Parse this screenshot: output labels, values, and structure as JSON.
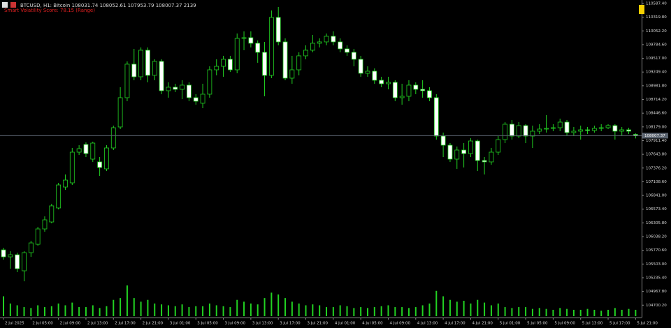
{
  "chart_data": {
    "type": "candlestick",
    "title": "BTCUSD, H1:  Bitcoin  108031.74 108052.61 107953.79 108007.37  2139",
    "subtitle": "Smart Volatility Score: 78.15 (Range)",
    "categories": [
      "2 Jul 2025",
      null,
      null,
      null,
      "2 Jul 05:00",
      null,
      null,
      null,
      "2 Jul 09:00",
      null,
      null,
      null,
      "2 Jul 13:00",
      null,
      null,
      null,
      "2 Jul 17:00",
      null,
      null,
      null,
      "2 Jul 21:00",
      null,
      null,
      null,
      "3 Jul 01:00",
      null,
      null,
      null,
      "3 Jul 05:00",
      null,
      null,
      null,
      "3 Jul 09:00",
      null,
      null,
      null,
      "3 Jul 13:00",
      null,
      null,
      null,
      "3 Jul 17:00",
      null,
      null,
      null,
      "3 Jul 21:00",
      null,
      null,
      null,
      "4 Jul 01:00",
      null,
      null,
      null,
      "4 Jul 05:00",
      null,
      null,
      null,
      "4 Jul 09:00",
      null,
      null,
      null,
      "4 Jul 13:00",
      null,
      null,
      null,
      "4 Jul 17:00",
      null,
      null,
      null,
      "4 Jul 21:00",
      null,
      null,
      null,
      "5 Jul 01:00",
      null,
      null,
      null,
      "5 Jul 05:00",
      null,
      null,
      null,
      "5 Jul 09:00",
      null,
      null,
      null,
      "5 Jul 13:00",
      null,
      null,
      null,
      "5 Jul 17:00",
      null,
      null,
      null,
      "5 Jul 21:00"
    ],
    "open": [
      105779,
      105643,
      105684,
      105371,
      105725,
      105888,
      106188,
      106324,
      106597,
      107005,
      107087,
      107686,
      107836,
      107550,
      107496,
      107360,
      107768,
      108177,
      108749,
      109403,
      109157,
      109675,
      109185,
      109457,
      108885,
      108953,
      108912,
      108994,
      108749,
      108640,
      108817,
      109293,
      109361,
      109498,
      109293,
      109906,
      109920,
      109811,
      109634,
      109184,
      110315,
      109838,
      109130,
      109293,
      109566,
      109675,
      109811,
      109838,
      109947,
      109838,
      109702,
      109634,
      109498,
      109225,
      109266,
      109089,
      109021,
      109048,
      108749,
      108776,
      108994,
      108912,
      108885,
      108749,
      108000,
      107822,
      107550,
      107727,
      107659,
      107904,
      107523,
      107496,
      107686,
      107931,
      108231,
      108000,
      108204,
      108000,
      108095,
      108136,
      108150,
      108163,
      108272,
      108068,
      108095,
      108122,
      108109,
      108150,
      108163,
      108204,
      108095,
      108122,
      108031.74
    ],
    "high": [
      105820,
      105752,
      105725,
      105752,
      105956,
      106229,
      106433,
      106679,
      107087,
      107250,
      107768,
      107822,
      107877,
      107890,
      107591,
      107822,
      108204,
      108953,
      109457,
      109702,
      109729,
      109729,
      109498,
      109498,
      109048,
      109021,
      109089,
      109048,
      108817,
      109021,
      109361,
      109498,
      109566,
      109566,
      110001,
      110043,
      110043,
      109866,
      109838,
      110451,
      110519,
      109906,
      109566,
      109634,
      109770,
      109974,
      109906,
      110001,
      110043,
      109906,
      109770,
      109702,
      109566,
      109361,
      109320,
      109157,
      109157,
      109089,
      109021,
      109089,
      109048,
      109089,
      108953,
      108817,
      108068,
      107863,
      107795,
      107863,
      107958,
      107931,
      107591,
      107768,
      108000,
      108272,
      108313,
      108272,
      108231,
      108204,
      108231,
      108408,
      108231,
      108340,
      108313,
      108177,
      108204,
      108177,
      108204,
      108231,
      108231,
      108231,
      108177,
      108163,
      108052.61
    ],
    "low": [
      105589,
      105412,
      105344,
      105166,
      105643,
      105861,
      106134,
      106297,
      106569,
      106951,
      107046,
      107632,
      107591,
      107496,
      107223,
      107319,
      107727,
      108136,
      108680,
      109089,
      109089,
      109048,
      109089,
      108817,
      108749,
      108858,
      108721,
      108680,
      108612,
      108544,
      108749,
      109184,
      109157,
      109252,
      109225,
      109675,
      109729,
      109430,
      108776,
      109130,
      109770,
      109089,
      109021,
      109184,
      109498,
      109634,
      109729,
      109770,
      109770,
      109634,
      109566,
      109361,
      109157,
      109157,
      109021,
      108953,
      108912,
      108680,
      108612,
      108680,
      108817,
      108749,
      108680,
      107931,
      107591,
      107496,
      107360,
      107387,
      107591,
      107319,
      107250,
      107441,
      107632,
      107863,
      107931,
      107958,
      107863,
      107768,
      108041,
      108068,
      108095,
      108095,
      108000,
      108000,
      107931,
      108041,
      108068,
      108095,
      108136,
      107931,
      108000,
      108041,
      107953.79
    ],
    "close": [
      105643,
      105684,
      105412,
      105725,
      105915,
      106188,
      106365,
      106638,
      107046,
      107141,
      107686,
      107754,
      107659,
      107863,
      107387,
      107768,
      108163,
      108749,
      109403,
      109157,
      109675,
      109185,
      109457,
      108885,
      108953,
      108912,
      108994,
      108749,
      108680,
      108817,
      109293,
      109361,
      109498,
      109293,
      109906,
      109920,
      109811,
      109634,
      109184,
      110315,
      109838,
      109130,
      109293,
      109566,
      109675,
      109811,
      109838,
      109947,
      109838,
      109702,
      109634,
      109498,
      109225,
      109266,
      109089,
      109021,
      109048,
      108749,
      108776,
      108994,
      108912,
      108885,
      108749,
      108000,
      107822,
      107550,
      107727,
      107659,
      107904,
      107523,
      107496,
      107686,
      107931,
      108231,
      108000,
      108204,
      108000,
      108095,
      108136,
      108150,
      108163,
      108272,
      108068,
      108095,
      108122,
      108109,
      108150,
      108163,
      108204,
      108095,
      108122,
      108095,
      108007.37
    ],
    "volume": [
      1100,
      700,
      600,
      500,
      450,
      600,
      500,
      550,
      700,
      600,
      750,
      500,
      500,
      600,
      450,
      550,
      900,
      1000,
      1700,
      1000,
      800,
      900,
      700,
      650,
      600,
      550,
      650,
      500,
      550,
      550,
      700,
      600,
      550,
      500,
      900,
      800,
      700,
      650,
      1000,
      1300,
      1200,
      1000,
      800,
      700,
      600,
      650,
      600,
      500,
      500,
      600,
      550,
      450,
      500,
      450,
      500,
      550,
      600,
      500,
      500,
      450,
      500,
      600,
      700,
      1400,
      1100,
      900,
      800,
      850,
      700,
      900,
      750,
      600,
      700,
      500,
      450,
      500,
      500,
      400,
      450,
      400,
      350,
      450,
      400,
      350,
      350,
      400,
      350,
      300,
      350,
      450,
      350,
      400,
      350
    ],
    "ylim": [
      104595,
      110655
    ],
    "yticks": [
      {
        "value": 110587.4,
        "label": "110587.40"
      },
      {
        "value": 110319.8,
        "label": "110319.80"
      },
      {
        "value": 110052.2,
        "label": "110052.20"
      },
      {
        "value": 109784.6,
        "label": "109784.60"
      },
      {
        "value": 109517,
        "label": "109517.00"
      },
      {
        "value": 109249.4,
        "label": "109249.40"
      },
      {
        "value": 108981.8,
        "label": "108981.80"
      },
      {
        "value": 108714.2,
        "label": "108714.20"
      },
      {
        "value": 108446.6,
        "label": "108446.60"
      },
      {
        "value": 108179,
        "label": "108179.00"
      },
      {
        "value": 107911.4,
        "label": "107911.40"
      },
      {
        "value": 107643.8,
        "label": "107643.80"
      },
      {
        "value": 107376.2,
        "label": "107376.20"
      },
      {
        "value": 107108.6,
        "label": "107108.60"
      },
      {
        "value": 106841,
        "label": "106841.00"
      },
      {
        "value": 106573.4,
        "label": "106573.40"
      },
      {
        "value": 106305.8,
        "label": "106305.80"
      },
      {
        "value": 106038.2,
        "label": "106038.20"
      },
      {
        "value": 105770.6,
        "label": "105770.60"
      },
      {
        "value": 105503,
        "label": "105503.00"
      },
      {
        "value": 105235.4,
        "label": "105235.40"
      },
      {
        "value": 104967.8,
        "label": "104967.80"
      },
      {
        "value": 104700.2,
        "label": "104700.20"
      }
    ],
    "last_price": 108007.37,
    "colors": {
      "background": "#000000",
      "up_body": "#000000",
      "down_body": "#ffffff",
      "wick": "#22d222",
      "volume": "#22d222",
      "price_line": "#59626e",
      "subtitle": "#e02020",
      "text": "#d8d8d8"
    }
  }
}
